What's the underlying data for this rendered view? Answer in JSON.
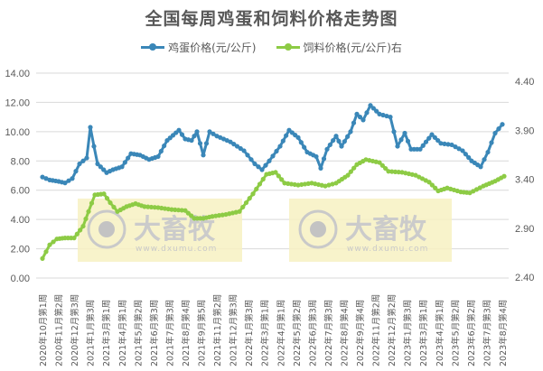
{
  "chart_data": {
    "type": "line",
    "title": "全国每周鸡蛋和饲料价格走势图",
    "xlabel": "",
    "ylabel": "",
    "grid": true,
    "legend_position": "top",
    "x_tick_labels": [
      "2020年10月第1周",
      "2020年11月第2周",
      "2020年12月第3周",
      "2021年1月第3周",
      "2021年3月第1周",
      "2021年4月第1周",
      "2021年5月第2周",
      "2021年6月第3周",
      "2021年7月第3周",
      "2021年8月第4周",
      "2021年9月第5周",
      "2021年11月第2周",
      "2021年12月第3周",
      "2022年1月第3周",
      "2022年3月第1周",
      "2022年4月第1周",
      "2022年5月第2周",
      "2022年6月第3周",
      "2022年7月第3周",
      "2022年8月第4周",
      "2022年9月第4周",
      "2022年11月第2周",
      "2022年12月第2周",
      "2023年1月第3周",
      "2023年3月第1周",
      "2023年4月第1周",
      "2023年5月第2周",
      "2023年6月第2周",
      "2023年7月第3周",
      "2023年8月第4周"
    ],
    "left_axis": {
      "min": 0,
      "max": 14,
      "step": 2,
      "ticks": [
        "0.00",
        "2.00",
        "4.00",
        "6.00",
        "8.00",
        "10.00",
        "12.00",
        "14.00"
      ]
    },
    "right_axis": {
      "min": 2.4,
      "max": 4.4,
      "step": 0.5,
      "ticks": [
        "2.40",
        "2.90",
        "3.40",
        "3.90",
        "4.40"
      ]
    },
    "series": [
      {
        "name": "鸡蛋价格(元/公斤)",
        "axis": "left",
        "color": "#3A87B8",
        "points": [
          [
            47,
            6.9
          ],
          [
            55,
            6.7
          ],
          [
            65,
            6.6
          ],
          [
            72,
            6.5
          ],
          [
            80,
            6.8
          ],
          [
            88,
            7.8
          ],
          [
            96,
            8.2
          ],
          [
            100,
            10.3
          ],
          [
            104,
            9.0
          ],
          [
            108,
            7.8
          ],
          [
            118,
            7.2
          ],
          [
            125,
            7.4
          ],
          [
            135,
            7.6
          ],
          [
            145,
            8.5
          ],
          [
            155,
            8.4
          ],
          [
            165,
            8.1
          ],
          [
            175,
            8.3
          ],
          [
            185,
            9.4
          ],
          [
            198,
            10.1
          ],
          [
            205,
            9.5
          ],
          [
            212,
            9.4
          ],
          [
            218,
            10.0
          ],
          [
            225,
            8.4
          ],
          [
            232,
            10.0
          ],
          [
            240,
            9.7
          ],
          [
            255,
            9.3
          ],
          [
            270,
            8.7
          ],
          [
            282,
            7.8
          ],
          [
            290,
            7.4
          ],
          [
            298,
            8.0
          ],
          [
            310,
            9.0
          ],
          [
            320,
            10.1
          ],
          [
            330,
            9.6
          ],
          [
            340,
            8.6
          ],
          [
            350,
            8.3
          ],
          [
            355,
            7.5
          ],
          [
            362,
            8.8
          ],
          [
            372,
            9.7
          ],
          [
            378,
            9.0
          ],
          [
            388,
            10.0
          ],
          [
            395,
            11.2
          ],
          [
            402,
            10.8
          ],
          [
            410,
            11.8
          ],
          [
            420,
            11.2
          ],
          [
            432,
            11.0
          ],
          [
            440,
            9.0
          ],
          [
            448,
            9.9
          ],
          [
            455,
            8.8
          ],
          [
            465,
            8.8
          ],
          [
            478,
            9.8
          ],
          [
            488,
            9.2
          ],
          [
            500,
            9.1
          ],
          [
            512,
            8.7
          ],
          [
            522,
            8.0
          ],
          [
            532,
            7.6
          ],
          [
            540,
            8.6
          ],
          [
            548,
            9.9
          ],
          [
            556,
            10.5
          ]
        ]
      },
      {
        "name": "饲料价格(元/公斤)右",
        "axis": "right",
        "color": "#8DCB45",
        "points": [
          [
            47,
            2.59
          ],
          [
            55,
            2.73
          ],
          [
            63,
            2.79
          ],
          [
            72,
            2.8
          ],
          [
            82,
            2.8
          ],
          [
            92,
            2.92
          ],
          [
            98,
            3.07
          ],
          [
            105,
            3.24
          ],
          [
            115,
            3.25
          ],
          [
            122,
            3.16
          ],
          [
            130,
            3.07
          ],
          [
            140,
            3.12
          ],
          [
            150,
            3.15
          ],
          [
            160,
            3.12
          ],
          [
            175,
            3.11
          ],
          [
            190,
            3.09
          ],
          [
            205,
            3.08
          ],
          [
            215,
            3.0
          ],
          [
            225,
            3.0
          ],
          [
            235,
            3.02
          ],
          [
            250,
            3.04
          ],
          [
            265,
            3.07
          ],
          [
            280,
            3.25
          ],
          [
            295,
            3.45
          ],
          [
            305,
            3.47
          ],
          [
            315,
            3.36
          ],
          [
            330,
            3.34
          ],
          [
            345,
            3.36
          ],
          [
            360,
            3.33
          ],
          [
            372,
            3.36
          ],
          [
            385,
            3.44
          ],
          [
            395,
            3.55
          ],
          [
            405,
            3.6
          ],
          [
            420,
            3.57
          ],
          [
            430,
            3.48
          ],
          [
            445,
            3.47
          ],
          [
            460,
            3.44
          ],
          [
            475,
            3.37
          ],
          [
            485,
            3.28
          ],
          [
            495,
            3.31
          ],
          [
            510,
            3.27
          ],
          [
            520,
            3.26
          ],
          [
            535,
            3.33
          ],
          [
            548,
            3.38
          ],
          [
            558,
            3.43
          ]
        ]
      }
    ]
  },
  "watermark": {
    "text": "大畜牧",
    "url_text": "www.dxumu.com"
  }
}
